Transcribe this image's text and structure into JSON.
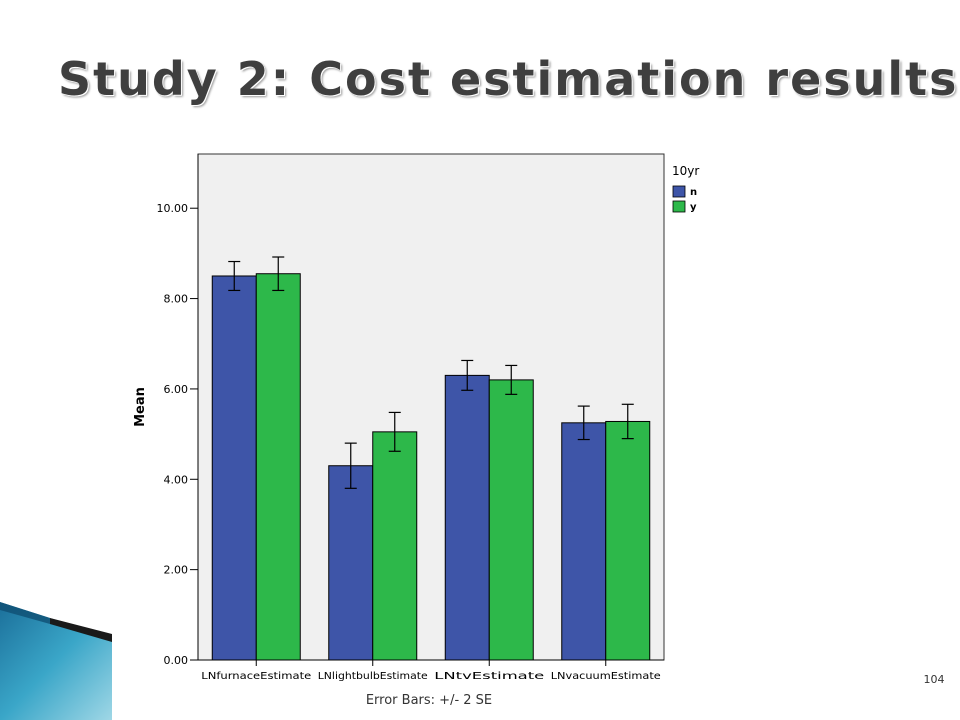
{
  "slide": {
    "title": "Study 2: Cost estimation results",
    "page_number": "104"
  },
  "chart_data": {
    "type": "bar",
    "categories": [
      "LNfurnaceEstimate",
      "LNlightbulbEstimate",
      "LNtvEstimate",
      "LNvacuumEstimate"
    ],
    "series": [
      {
        "name": "n",
        "color": "#3e55a8",
        "values": [
          8.5,
          4.3,
          6.3,
          5.25
        ],
        "error": [
          0.32,
          0.5,
          0.33,
          0.37
        ]
      },
      {
        "name": "y",
        "color": "#2db84a",
        "values": [
          8.55,
          5.05,
          6.2,
          5.28
        ],
        "error": [
          0.37,
          0.43,
          0.32,
          0.38
        ]
      }
    ],
    "ylabel": "Mean",
    "xlabel": "Error Bars: +/- 2 SE",
    "legend_title": "10yr",
    "legend_position": "right",
    "yticks": [
      0,
      2,
      4,
      6,
      8,
      10
    ],
    "ytick_labels": [
      "0.00",
      "2.00",
      "4.00",
      "6.00",
      "8.00",
      "10.00"
    ],
    "ylim": [
      0,
      11.2
    ],
    "plot_background": "#f0f0f0",
    "grid": false
  }
}
